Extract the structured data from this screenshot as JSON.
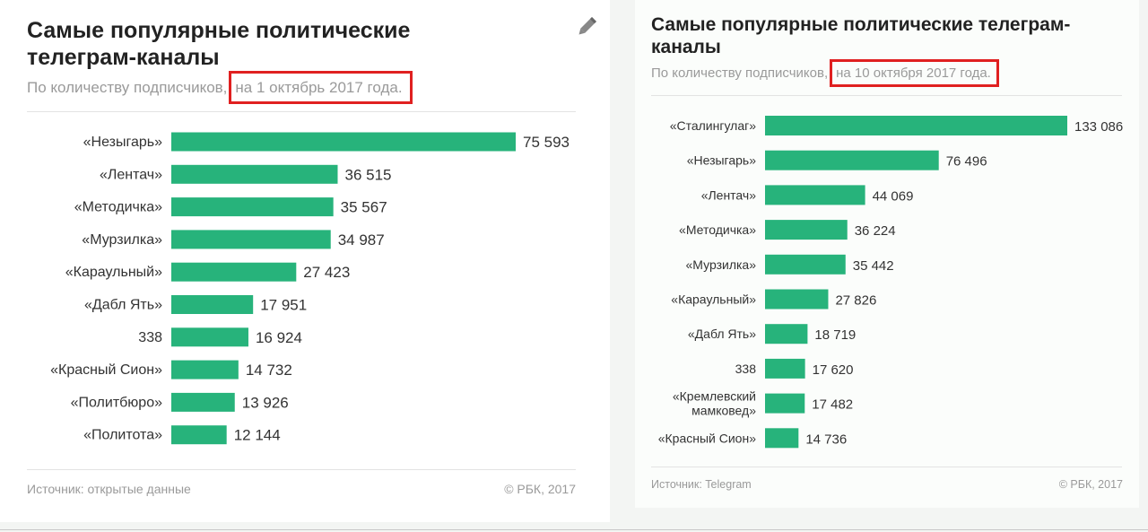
{
  "colors": {
    "bar": "#27b37b",
    "highlight_box": "#e02020"
  },
  "icons": {
    "edit": "pencil-icon"
  },
  "chart_data": [
    {
      "type": "bar",
      "orientation": "horizontal",
      "title": "Самые популярные политические телеграм-каналы",
      "subtitle_prefix": "По количеству подписчиков,",
      "subtitle_highlight": "на 1 октябрь 2017 года.",
      "source": "Источник: открытые данные",
      "credit": "© РБК, 2017",
      "grid": false,
      "legend": "none",
      "categories": [
        "«Незыгарь»",
        "«Лентач»",
        "«Методичка»",
        "«Мурзилка»",
        "«Караульный»",
        "«Дабл Ять»",
        "338",
        "«Красный Сион»",
        "«Политбюро»",
        "«Политота»"
      ],
      "values": [
        75593,
        36515,
        35567,
        34987,
        27423,
        17951,
        16924,
        14732,
        13926,
        12144
      ],
      "value_labels": [
        "75 593",
        "36 515",
        "35 567",
        "34 987",
        "27 423",
        "17 951",
        "16 924",
        "14 732",
        "13 926",
        "12 144"
      ]
    },
    {
      "type": "bar",
      "orientation": "horizontal",
      "title": "Самые популярные политические телеграм-каналы",
      "subtitle_prefix": "По количеству подписчиков,",
      "subtitle_highlight": "на 10 октября 2017 года.",
      "source": "Источник: Telegram",
      "credit": "© РБК, 2017",
      "grid": false,
      "legend": "none",
      "categories": [
        "«Сталингулаг»",
        "«Незыгарь»",
        "«Лентач»",
        "«Методичка»",
        "«Мурзилка»",
        "«Караульный»",
        "«Дабл Ять»",
        "338",
        "«Кремлевский мамковед»",
        "«Красный Сион»"
      ],
      "values": [
        133086,
        76496,
        44069,
        36224,
        35442,
        27826,
        18719,
        17620,
        17482,
        14736
      ],
      "value_labels": [
        "133 086",
        "76 496",
        "44 069",
        "36 224",
        "35 442",
        "27 826",
        "18 719",
        "17 620",
        "17 482",
        "14 736"
      ]
    }
  ]
}
